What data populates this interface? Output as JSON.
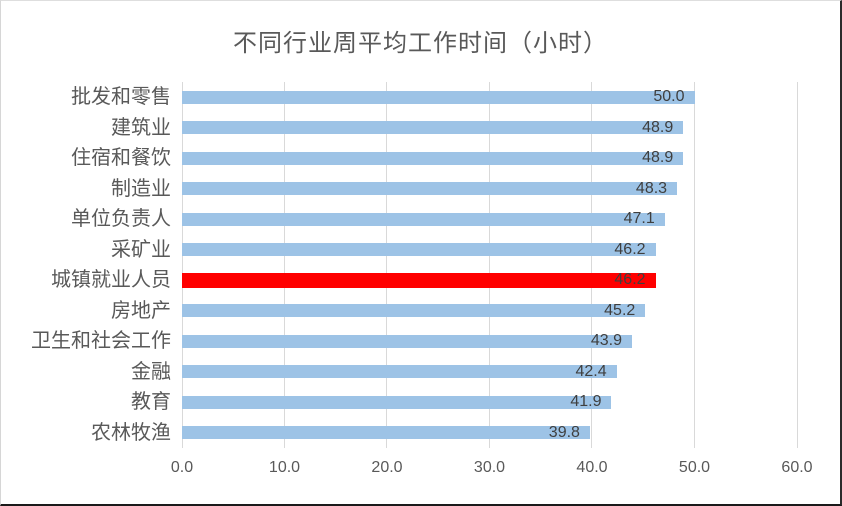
{
  "chart_data": {
    "type": "bar",
    "orientation": "horizontal",
    "title": "不同行业周平均工作时间（小时）",
    "categories": [
      "批发和零售",
      "建筑业",
      "住宿和餐饮",
      "制造业",
      "单位负责人",
      "采矿业",
      "城镇就业人员",
      "房地产",
      "卫生和社会工作",
      "金融",
      "教育",
      "农林牧渔"
    ],
    "values": [
      50.0,
      48.9,
      48.9,
      48.3,
      47.1,
      46.2,
      46.2,
      45.2,
      43.9,
      42.4,
      41.9,
      39.8
    ],
    "value_labels": [
      "50.0",
      "48.9",
      "48.9",
      "48.3",
      "47.1",
      "46.2",
      "46.2",
      "45.2",
      "43.9",
      "42.4",
      "41.9",
      "39.8"
    ],
    "highlight_index": 6,
    "highlight_category": "城镇就业人员",
    "xlim": [
      0,
      60
    ],
    "x_ticks": [
      0,
      10,
      20,
      30,
      40,
      50,
      60
    ],
    "x_tick_labels": [
      "0.0",
      "10.0",
      "20.0",
      "30.0",
      "40.0",
      "50.0",
      "60.0"
    ],
    "grid": true,
    "legend": "none",
    "bar_color": "#9DC3E6",
    "highlight_color": "#FF0000",
    "grid_color": "#D9D9D9",
    "title_color": "#595959",
    "label_color": "#595959",
    "value_color": "#3F3F3F"
  }
}
